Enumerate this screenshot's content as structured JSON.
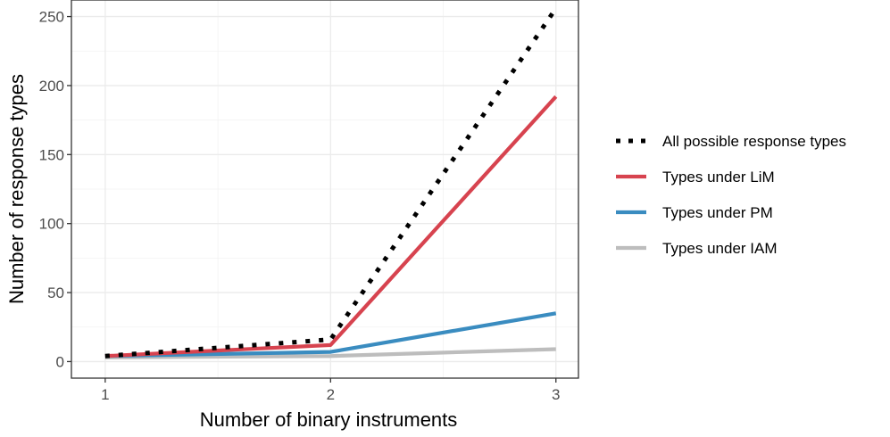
{
  "chart_data": {
    "type": "line",
    "title": "",
    "xlabel": "Number of binary instruments",
    "ylabel": "Number of response types",
    "x": [
      1,
      2,
      3
    ],
    "x_ticks": [
      "1",
      "2",
      "3"
    ],
    "y_ticks": [
      "0",
      "50",
      "100",
      "150",
      "200",
      "250"
    ],
    "xlim": [
      0.85,
      3.1
    ],
    "ylim": [
      -12,
      262
    ],
    "grid": true,
    "legend_position": "right",
    "series": [
      {
        "name": "All possible response types",
        "values": [
          4,
          16,
          256
        ],
        "color": "#000000",
        "style": "dotted"
      },
      {
        "name": "Types under LiM",
        "values": [
          4,
          12,
          192
        ],
        "color": "#d7434f",
        "style": "solid"
      },
      {
        "name": "Types under PM",
        "values": [
          4,
          7,
          35
        ],
        "color": "#3a8cc0",
        "style": "solid"
      },
      {
        "name": "Types under IAM",
        "values": [
          3,
          4,
          9
        ],
        "color": "#bdbdbd",
        "style": "solid"
      }
    ]
  }
}
